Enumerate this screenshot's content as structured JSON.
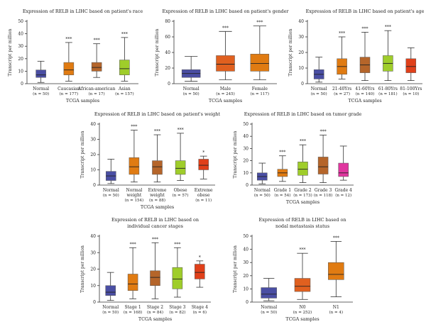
{
  "chart_data": [
    {
      "type": "box",
      "title": "Expression of RELB in LIHC based on patient's race",
      "xlabel": "TCGA samples",
      "ylabel": "Transcript per million",
      "ylim": [
        0,
        50
      ],
      "yticks": [
        0,
        10,
        20,
        30,
        40,
        50
      ],
      "boxes": [
        {
          "label": "Normal",
          "n": "(n = 50)",
          "color": "#4a4ea3",
          "whisker_low": 1,
          "q1": 5,
          "median": 7,
          "q3": 11,
          "whisker_high": 18,
          "sig": ""
        },
        {
          "label": "Caucasian",
          "n": "(n = 177)",
          "color": "#e07b12",
          "whisker_low": 2,
          "q1": 7,
          "median": 11,
          "q3": 17,
          "whisker_high": 33,
          "sig": "***"
        },
        {
          "label": "African-american",
          "n": "(n = 17)",
          "color": "#b5652a",
          "whisker_low": 5,
          "q1": 10,
          "median": 13,
          "q3": 17,
          "whisker_high": 32,
          "sig": "***"
        },
        {
          "label": "Asian",
          "n": "(n = 157)",
          "color": "#9fcd2a",
          "whisker_low": 2,
          "q1": 7,
          "median": 12,
          "q3": 19,
          "whisker_high": 37,
          "sig": "***"
        }
      ]
    },
    {
      "type": "box",
      "title": "Expression of RELB in LIHC based on patient's gender",
      "xlabel": "TCGA samples",
      "ylabel": "Transcript per million",
      "ylim": [
        0,
        80
      ],
      "yticks": [
        0,
        20,
        40,
        60,
        80
      ],
      "boxes": [
        {
          "label": "Normal",
          "n": "(n = 50)",
          "color": "#4a4ea3",
          "whisker_low": 3,
          "q1": 8,
          "median": 13,
          "q3": 18,
          "whisker_high": 35,
          "sig": ""
        },
        {
          "label": "Male",
          "n": "(n = 245)",
          "color": "#e0601f",
          "whisker_low": 5,
          "q1": 16,
          "median": 25,
          "q3": 36,
          "whisker_high": 67,
          "sig": "***"
        },
        {
          "label": "Female",
          "n": "(n = 117)",
          "color": "#e07b12",
          "whisker_low": 5,
          "q1": 16,
          "median": 26,
          "q3": 38,
          "whisker_high": 74,
          "sig": "***"
        }
      ]
    },
    {
      "type": "box",
      "title": "Expression of RELB in LIHC based on patient's age",
      "xlabel": "TCGA samples",
      "ylabel": "Transcript per million",
      "ylim": [
        0,
        40
      ],
      "yticks": [
        0,
        10,
        20,
        30,
        40
      ],
      "boxes": [
        {
          "label": "Normal",
          "n": "(n = 50)",
          "color": "#4a4ea3",
          "whisker_low": 1,
          "q1": 3,
          "median": 6,
          "q3": 9,
          "whisker_high": 17,
          "sig": ""
        },
        {
          "label": "21-40Yrs",
          "n": "(n = 27)",
          "color": "#e07b12",
          "whisker_low": 3,
          "q1": 6,
          "median": 11,
          "q3": 16,
          "whisker_high": 30,
          "sig": "***"
        },
        {
          "label": "41-60Yrs",
          "n": "(n = 140)",
          "color": "#b5652a",
          "whisker_low": 2,
          "q1": 7,
          "median": 12,
          "q3": 17,
          "whisker_high": 33,
          "sig": "***"
        },
        {
          "label": "61-80Yrs",
          "n": "(n = 181)",
          "color": "#9fcd2a",
          "whisker_low": 2,
          "q1": 8,
          "median": 13,
          "q3": 18,
          "whisker_high": 34,
          "sig": "***"
        },
        {
          "label": "81-100Yrs",
          "n": "(n = 10)",
          "color": "#e0401a",
          "whisker_low": 2,
          "q1": 7,
          "median": 11,
          "q3": 16,
          "whisker_high": 23,
          "sig": ""
        }
      ]
    },
    {
      "type": "box",
      "title": "Expression of RELB in LIHC based on patient's weight",
      "xlabel": "TCGA samples",
      "ylabel": "Transcript per million",
      "ylim": [
        0,
        40
      ],
      "yticks": [
        0,
        10,
        20,
        30,
        40
      ],
      "boxes": [
        {
          "label": "Normal",
          "n": "(n = 50)",
          "color": "#4a4ea3",
          "whisker_low": 1,
          "q1": 3,
          "median": 6,
          "q3": 9,
          "whisker_high": 17,
          "sig": ""
        },
        {
          "label": [
            "Normal",
            "weight"
          ],
          "n": "(n = 154)",
          "color": "#e07b12",
          "whisker_low": 2,
          "q1": 7,
          "median": 12,
          "q3": 18,
          "whisker_high": 36,
          "sig": "***"
        },
        {
          "label": [
            "Extreme",
            "weight"
          ],
          "n": "(n = 88)",
          "color": "#b5652a",
          "whisker_low": 2,
          "q1": 7,
          "median": 12,
          "q3": 16,
          "whisker_high": 33,
          "sig": "***"
        },
        {
          "label": "Obese",
          "n": "(n = 57)",
          "color": "#9fcd2a",
          "whisker_low": 3,
          "q1": 7,
          "median": 11,
          "q3": 16,
          "whisker_high": 34,
          "sig": "***"
        },
        {
          "label": [
            "Extreme",
            "obese"
          ],
          "n": "(n = 11)",
          "color": "#e0401a",
          "whisker_low": 4,
          "q1": 10,
          "median": 13,
          "q3": 17,
          "whisker_high": 19,
          "sig": "*"
        }
      ]
    },
    {
      "type": "box",
      "title": "Expression of RELB in LIHC based on tumor grade",
      "xlabel": "TCGA samples",
      "ylabel": "Transcript per million",
      "ylim": [
        0,
        50
      ],
      "yticks": [
        0,
        10,
        20,
        30,
        40,
        50
      ],
      "boxes": [
        {
          "label": "Normal",
          "n": "(n = 50)",
          "color": "#4a4ea3",
          "whisker_low": 1,
          "q1": 4,
          "median": 7,
          "q3": 10,
          "whisker_high": 18,
          "sig": ""
        },
        {
          "label": "Grade 1",
          "n": "(n = 54)",
          "color": "#e07b12",
          "whisker_low": 3,
          "q1": 7,
          "median": 10,
          "q3": 13,
          "whisker_high": 24,
          "sig": "***"
        },
        {
          "label": "Grade 2",
          "n": "(n = 173)",
          "color": "#9fcd2a",
          "whisker_low": 2,
          "q1": 8,
          "median": 13,
          "q3": 19,
          "whisker_high": 33,
          "sig": "***"
        },
        {
          "label": "Grade 3",
          "n": "(n = 118)",
          "color": "#b5652a",
          "whisker_low": 2,
          "q1": 9,
          "median": 15,
          "q3": 23,
          "whisker_high": 41,
          "sig": "***"
        },
        {
          "label": "Grade 4",
          "n": "(n = 12)",
          "color": "#e0369f",
          "whisker_low": 4,
          "q1": 7,
          "median": 10,
          "q3": 18,
          "whisker_high": 32,
          "sig": ""
        }
      ]
    },
    {
      "type": "box",
      "title": [
        "Expression of RELB in LIHC based on",
        "individual cancer stages"
      ],
      "xlabel": "TCGA samples",
      "ylabel": "Transcript per million",
      "ylim": [
        0,
        40
      ],
      "yticks": [
        0,
        10,
        20,
        30,
        40
      ],
      "boxes": [
        {
          "label": "Normal",
          "n": "(n = 50)",
          "color": "#4a4ea3",
          "whisker_low": 1,
          "q1": 4,
          "median": 6,
          "q3": 10,
          "whisker_high": 18,
          "sig": ""
        },
        {
          "label": "Stage 1",
          "n": "(n = 168)",
          "color": "#e07b12",
          "whisker_low": 2,
          "q1": 7,
          "median": 11,
          "q3": 17,
          "whisker_high": 33,
          "sig": "***"
        },
        {
          "label": "Stage 2",
          "n": "(n = 84)",
          "color": "#b5652a",
          "whisker_low": 2,
          "q1": 10,
          "median": 15,
          "q3": 19,
          "whisker_high": 36,
          "sig": "***"
        },
        {
          "label": "Stage 3",
          "n": "(n = 82)",
          "color": "#9fcd2a",
          "whisker_low": 3,
          "q1": 8,
          "median": 14,
          "q3": 21,
          "whisker_high": 33,
          "sig": "***"
        },
        {
          "label": "Stage 4",
          "n": "(n = 6)",
          "color": "#e0401a",
          "whisker_low": 9,
          "q1": 14,
          "median": 18,
          "q3": 23,
          "whisker_high": 25,
          "sig": "*"
        }
      ]
    },
    {
      "type": "box",
      "title": [
        "Expression of RELB in LIHC based on",
        "nodal metastasis status"
      ],
      "xlabel": "TCGA samples",
      "ylabel": "Transcript per million",
      "ylim": [
        0,
        50
      ],
      "yticks": [
        0,
        10,
        20,
        30,
        40,
        50
      ],
      "boxes": [
        {
          "label": "Normal",
          "n": "(n = 50)",
          "color": "#4a4ea3",
          "whisker_low": 1,
          "q1": 3,
          "median": 6,
          "q3": 11,
          "whisker_high": 18,
          "sig": ""
        },
        {
          "label": "N0",
          "n": "(n = 252)",
          "color": "#e0601f",
          "whisker_low": 2,
          "q1": 8,
          "median": 12,
          "q3": 18,
          "whisker_high": 37,
          "sig": "***"
        },
        {
          "label": "N1",
          "n": "(n = 4)",
          "color": "#e07b12",
          "whisker_low": 4,
          "q1": 17,
          "median": 21,
          "q3": 30,
          "whisker_high": 46,
          "sig": "***"
        }
      ]
    }
  ]
}
